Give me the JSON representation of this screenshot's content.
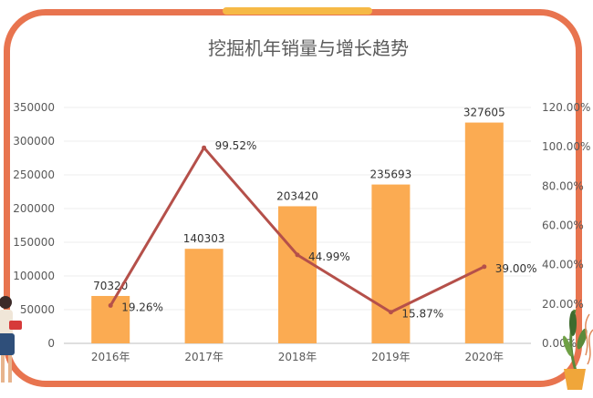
{
  "chart_data": {
    "type": "bar",
    "title": "挖掘机年销量与增长趋势",
    "categories": [
      "2016年",
      "2017年",
      "2018年",
      "2019年",
      "2020年"
    ],
    "series": [
      {
        "type": "bar",
        "axis": "left",
        "values": [
          70320,
          140303,
          203420,
          235693,
          327605
        ],
        "labels": [
          "70320",
          "140303",
          "203420",
          "235693",
          "327605"
        ],
        "color": "#fbab52"
      },
      {
        "type": "line",
        "axis": "right",
        "values": [
          19.26,
          99.52,
          44.99,
          15.87,
          39.0
        ],
        "labels": [
          "19.26%",
          "99.52%",
          "44.99%",
          "15.87%",
          "39.00%"
        ],
        "color": "#b5504a"
      }
    ],
    "y_left": {
      "min": 0,
      "max": 350000,
      "ticks": [
        "0",
        "50000",
        "100000",
        "150000",
        "200000",
        "250000",
        "300000",
        "350000"
      ]
    },
    "y_right": {
      "min": 0,
      "max": 120,
      "ticks": [
        "0.00%",
        "20.00%",
        "40.00%",
        "60.00%",
        "80.00%",
        "100.00%",
        "120.00%"
      ]
    },
    "grid": true,
    "legend": "none"
  },
  "colors": {
    "frame": "#e8744f",
    "accent": "#f6b946",
    "bar": "#fbab52",
    "line": "#b5504a"
  },
  "decorations": [
    "woman-figure-icon",
    "potted-plant-icon"
  ]
}
